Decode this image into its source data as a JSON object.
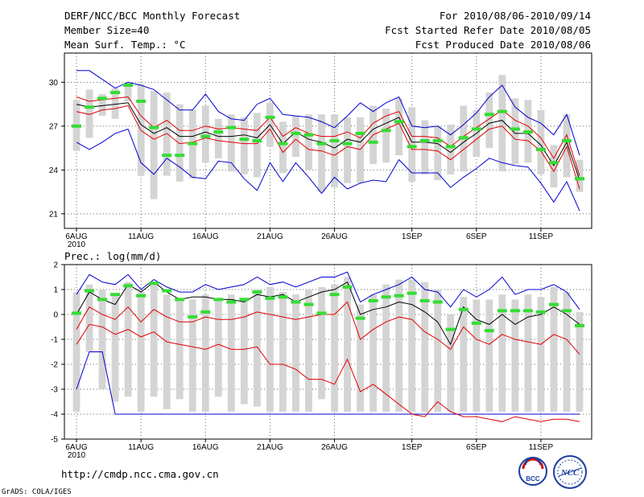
{
  "header": {
    "title": "DERF/NCC/BCC Monthly Forecast",
    "member_size": "Member Size=40",
    "variable": "Mean Surf. Temp.: °C",
    "period": "For 2010/08/06-2010/09/14",
    "started": "Fcst Started Refer Date 2010/08/05",
    "produced": "Fcst Produced Date 2010/08/06"
  },
  "footer": {
    "url": "http://cmdp.ncc.cma.gov.cn",
    "grads": "GrADS: COLA/IGES",
    "logo_bcc": "BCC",
    "logo_ncc": "NCC"
  },
  "colors": {
    "box": "#d4d4d4",
    "median": "#000000",
    "quartile": "#e00000",
    "extreme": "#0000d0",
    "observed": "#33dd33",
    "grid": "#666666"
  },
  "chart_data": [
    {
      "type": "box",
      "title": "Mean Surf. Temp.: °C",
      "x_tick_labels": [
        "6AUG",
        "11AUG",
        "16AUG",
        "21AUG",
        "26AUG",
        "1SEP",
        "6SEP",
        "11SEP"
      ],
      "x_tick_index": [
        0,
        5,
        10,
        15,
        20,
        26,
        31,
        36
      ],
      "year_label": "2010",
      "ylim": [
        20,
        32
      ],
      "y_ticks": [
        21,
        24,
        27,
        30
      ],
      "max": [
        30.8,
        30.8,
        30.2,
        29.6,
        30.0,
        29.8,
        29.5,
        28.8,
        28.1,
        28.1,
        29.2,
        28.0,
        27.5,
        27.4,
        28.5,
        28.9,
        27.8,
        27.7,
        27.6,
        27.3,
        26.9,
        27.7,
        28.6,
        28.0,
        28.6,
        29.0,
        27.0,
        26.9,
        27.0,
        26.4,
        27.1,
        27.9,
        29.0,
        29.8,
        28.3,
        27.6,
        27.2,
        26.4,
        27.8,
        25.0
      ],
      "q3": [
        29.0,
        28.7,
        28.8,
        28.9,
        29.0,
        27.7,
        26.9,
        27.4,
        26.7,
        26.7,
        27.0,
        26.8,
        26.9,
        26.8,
        26.7,
        27.6,
        26.3,
        26.9,
        26.5,
        26.3,
        26.3,
        26.6,
        26.2,
        27.2,
        27.7,
        28.0,
        26.3,
        26.3,
        26.2,
        25.6,
        26.3,
        26.9,
        27.5,
        28.1,
        27.4,
        27.0,
        26.2,
        24.8,
        26.4,
        23.6
      ],
      "median": [
        28.5,
        28.3,
        28.4,
        28.5,
        28.6,
        27.1,
        26.5,
        26.9,
        26.3,
        26.3,
        26.6,
        26.3,
        26.3,
        26.4,
        26.2,
        27.1,
        25.8,
        26.6,
        26.1,
        25.9,
        25.5,
        26.1,
        25.9,
        26.8,
        27.2,
        27.6,
        25.9,
        25.9,
        25.8,
        25.2,
        25.9,
        26.5,
        27.2,
        27.4,
        26.5,
        26.5,
        25.7,
        24.3,
        25.9,
        23.3
      ],
      "q1": [
        28.0,
        27.8,
        28.1,
        28.2,
        28.4,
        26.7,
        26.1,
        26.5,
        25.8,
        25.9,
        26.2,
        26.0,
        25.9,
        25.8,
        25.8,
        26.8,
        25.2,
        26.1,
        25.4,
        25.3,
        25.0,
        25.6,
        25.4,
        26.4,
        26.8,
        27.2,
        25.4,
        25.4,
        25.3,
        24.7,
        25.4,
        26.1,
        26.8,
        27.0,
        26.1,
        26.0,
        25.3,
        23.9,
        25.6,
        22.7
      ],
      "min": [
        25.9,
        25.4,
        25.9,
        26.5,
        26.8,
        24.5,
        23.7,
        24.8,
        24.2,
        23.5,
        23.4,
        24.6,
        24.5,
        23.4,
        22.6,
        24.5,
        23.2,
        24.5,
        23.5,
        22.4,
        23.5,
        22.7,
        23.1,
        23.3,
        23.2,
        24.7,
        23.8,
        23.8,
        23.8,
        22.8,
        23.5,
        24.1,
        24.8,
        24.5,
        24.3,
        24.2,
        23.1,
        21.8,
        23.2,
        21.2
      ],
      "box_low": [
        25.3,
        26.2,
        27.7,
        27.5,
        28.7,
        23.6,
        22.0,
        23.6,
        23.2,
        23.4,
        24.5,
        24.8,
        23.9,
        23.7,
        23.5,
        25.6,
        23.8,
        24.9,
        24.0,
        22.5,
        22.8,
        23.1,
        23.1,
        24.4,
        24.5,
        25.0,
        23.2,
        23.7,
        23.3,
        23.7,
        23.9,
        24.9,
        25.5,
        23.9,
        24.4,
        24.5,
        23.7,
        22.8,
        23.5,
        22.5
      ],
      "box_high": [
        28.8,
        29.5,
        29.2,
        29.6,
        30.0,
        29.9,
        29.4,
        29.3,
        28.5,
        28.1,
        28.4,
        27.5,
        27.8,
        27.6,
        27.9,
        28.6,
        27.3,
        27.7,
        27.8,
        27.8,
        27.8,
        27.6,
        27.6,
        28.4,
        28.2,
        28.9,
        28.3,
        27.4,
        27.0,
        27.1,
        28.4,
        28.1,
        29.3,
        30.5,
        28.9,
        28.8,
        28.1,
        25.7,
        27.8,
        24.7
      ],
      "observed": [
        27.0,
        28.3,
        28.9,
        29.3,
        29.8,
        28.7,
        26.9,
        25.0,
        25.0,
        25.8,
        26.3,
        26.6,
        26.9,
        26.1,
        26.0,
        27.6,
        25.8,
        26.5,
        26.4,
        25.8,
        26.0,
        25.8,
        26.5,
        25.9,
        26.7,
        27.3,
        25.6,
        26.0,
        26.0,
        25.6,
        26.2,
        26.8,
        27.8,
        28.0,
        26.8,
        26.6,
        25.4,
        24.5,
        26.0,
        23.4
      ]
    },
    {
      "type": "box",
      "title": "Prec.: log(mm/d)",
      "x_tick_labels": [
        "6AUG",
        "11AUG",
        "16AUG",
        "21AUG",
        "26AUG",
        "1SEP",
        "6SEP",
        "11SEP"
      ],
      "x_tick_index": [
        0,
        5,
        10,
        15,
        20,
        26,
        31,
        36
      ],
      "year_label": "2010",
      "ylim": [
        -5,
        2
      ],
      "y_ticks": [
        -5,
        -4,
        -3,
        -2,
        -1,
        0,
        1,
        2
      ],
      "max": [
        0.8,
        1.6,
        1.3,
        1.2,
        1.6,
        1.0,
        1.4,
        1.1,
        0.9,
        0.9,
        1.2,
        1.0,
        1.1,
        1.2,
        1.5,
        1.2,
        1.3,
        1.1,
        1.3,
        1.5,
        1.5,
        1.7,
        0.5,
        0.8,
        1.0,
        1.2,
        1.5,
        1.0,
        0.9,
        0.3,
        1.0,
        0.7,
        1.0,
        1.5,
        0.8,
        1.0,
        1.0,
        1.2,
        0.9,
        0.2
      ],
      "median": [
        0.0,
        0.9,
        0.6,
        0.4,
        1.2,
        0.9,
        1.3,
        0.9,
        0.6,
        0.7,
        0.7,
        0.6,
        0.6,
        0.5,
        0.8,
        0.7,
        0.8,
        0.5,
        0.7,
        0.9,
        1.0,
        1.3,
        0.0,
        0.2,
        0.3,
        0.5,
        0.4,
        0.1,
        -0.3,
        -1.2,
        0.3,
        -0.2,
        -0.4,
        0.0,
        -0.4,
        -0.1,
        0.0,
        0.3,
        0.0,
        -0.4
      ],
      "q3": [
        -0.6,
        0.3,
        0.0,
        -0.2,
        0.3,
        -0.3,
        0.2,
        -0.1,
        -0.3,
        -0.3,
        -0.1,
        -0.2,
        -0.2,
        -0.1,
        0.1,
        0.0,
        -0.1,
        -0.2,
        -0.1,
        0.0,
        0.0,
        0.5,
        -1.0,
        -0.6,
        -0.3,
        -0.1,
        -0.2,
        -0.7,
        -1.0,
        -1.4,
        -0.5,
        -1.0,
        -1.2,
        -0.8,
        -1.0,
        -1.1,
        -1.2,
        -0.8,
        -1.0,
        -1.6
      ],
      "q1": [
        -1.2,
        -0.4,
        -0.5,
        -0.8,
        -0.6,
        -0.9,
        -0.7,
        -1.1,
        -1.2,
        -1.3,
        -1.4,
        -1.2,
        -1.4,
        -1.4,
        -1.3,
        -2.0,
        -2.0,
        -2.2,
        -2.6,
        -2.6,
        -2.8,
        -1.8,
        -3.1,
        -2.8,
        -3.2,
        -3.6,
        -4.0,
        -4.1,
        -3.5,
        -3.9,
        -4.1,
        -4.1,
        -4.2,
        -4.3,
        -4.1,
        -4.2,
        -4.3,
        -4.2,
        -4.2,
        -4.3
      ],
      "min": [
        -3.0,
        -1.5,
        -1.5,
        -4.0,
        -4.0,
        -4.0,
        -4.0,
        -4.0,
        -4.0,
        -4.0,
        -4.0,
        -4.0,
        -4.0,
        -4.0,
        -4.0,
        -4.0,
        -4.0,
        -4.0,
        -4.0,
        -4.0,
        -4.0,
        -4.0,
        -4.0,
        -4.0,
        -4.0,
        -4.0,
        -4.0,
        -4.0,
        -4.0,
        -4.0,
        -4.0,
        -4.0,
        -4.0,
        -4.0,
        -4.0,
        -4.0,
        -4.0,
        -4.0,
        -4.0,
        -4.0
      ],
      "box_low": [
        -3.9,
        -1.5,
        -3.0,
        -3.5,
        -3.3,
        -3.9,
        -3.3,
        -3.8,
        -3.4,
        -3.9,
        -3.9,
        -3.3,
        -3.9,
        -3.6,
        -3.7,
        -3.9,
        -3.9,
        -3.9,
        -3.9,
        -3.4,
        -3.9,
        -3.9,
        -3.9,
        -3.9,
        -3.9,
        -3.9,
        -3.9,
        -3.9,
        -3.9,
        -3.9,
        -3.9,
        -3.9,
        -3.9,
        -3.9,
        -3.9,
        -3.9,
        -3.9,
        -3.9,
        -3.9,
        -3.9
      ],
      "box_high": [
        0.9,
        1.2,
        1.0,
        0.8,
        1.3,
        0.9,
        1.2,
        0.8,
        0.6,
        0.6,
        0.8,
        0.6,
        0.8,
        0.6,
        1.0,
        1.1,
        0.9,
        0.8,
        1.0,
        1.1,
        1.2,
        1.5,
        0.4,
        0.8,
        1.2,
        1.4,
        1.4,
        1.3,
        1.0,
        0.0,
        0.7,
        0.6,
        0.6,
        0.8,
        0.6,
        0.8,
        0.7,
        1.1,
        0.9,
        0.1
      ],
      "observed": [
        0.05,
        0.95,
        0.6,
        0.8,
        1.15,
        0.75,
        1.25,
        0.95,
        0.6,
        -0.1,
        0.1,
        0.6,
        0.5,
        0.6,
        0.9,
        0.65,
        0.7,
        0.5,
        0.4,
        0.05,
        0.8,
        1.1,
        -0.15,
        0.55,
        0.7,
        0.75,
        0.85,
        0.55,
        0.5,
        -0.6,
        0.2,
        -0.35,
        -0.65,
        0.15,
        0.15,
        0.15,
        0.1,
        0.4,
        0.15,
        -0.45
      ]
    }
  ]
}
